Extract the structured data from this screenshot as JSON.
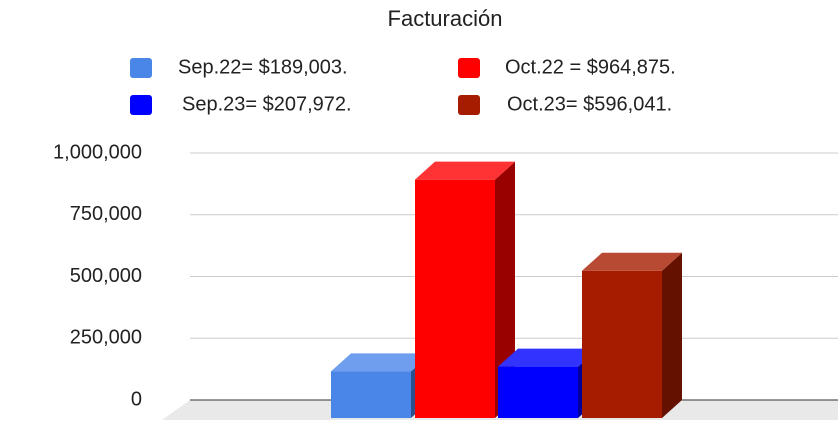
{
  "chart_data": {
    "type": "bar3d",
    "title": "Facturación",
    "categories": [
      null
    ],
    "series": [
      {
        "name": "Sep.22= $189,003.",
        "color": "#4a86e8",
        "values": [
          189003
        ]
      },
      {
        "name": "Oct.22 = $964,875.",
        "color": "#ff0000",
        "values": [
          964875
        ]
      },
      {
        "name": "Sep.23= $207,972.",
        "color": "#0000ff",
        "values": [
          207972
        ]
      },
      {
        "name": "Oct.23= $596,041.",
        "color": "#a61c00",
        "values": [
          596041
        ]
      }
    ],
    "ylim": [
      0,
      1000000
    ],
    "yticks": [
      0,
      {
        "value": 250000,
        "label": "250,000"
      },
      {
        "value": 500000,
        "label": "500,000"
      },
      {
        "value": 750000,
        "label": "750,000"
      },
      {
        "value": 1000000,
        "label": "1,000,000"
      }
    ],
    "grid": true,
    "legend": "top"
  }
}
